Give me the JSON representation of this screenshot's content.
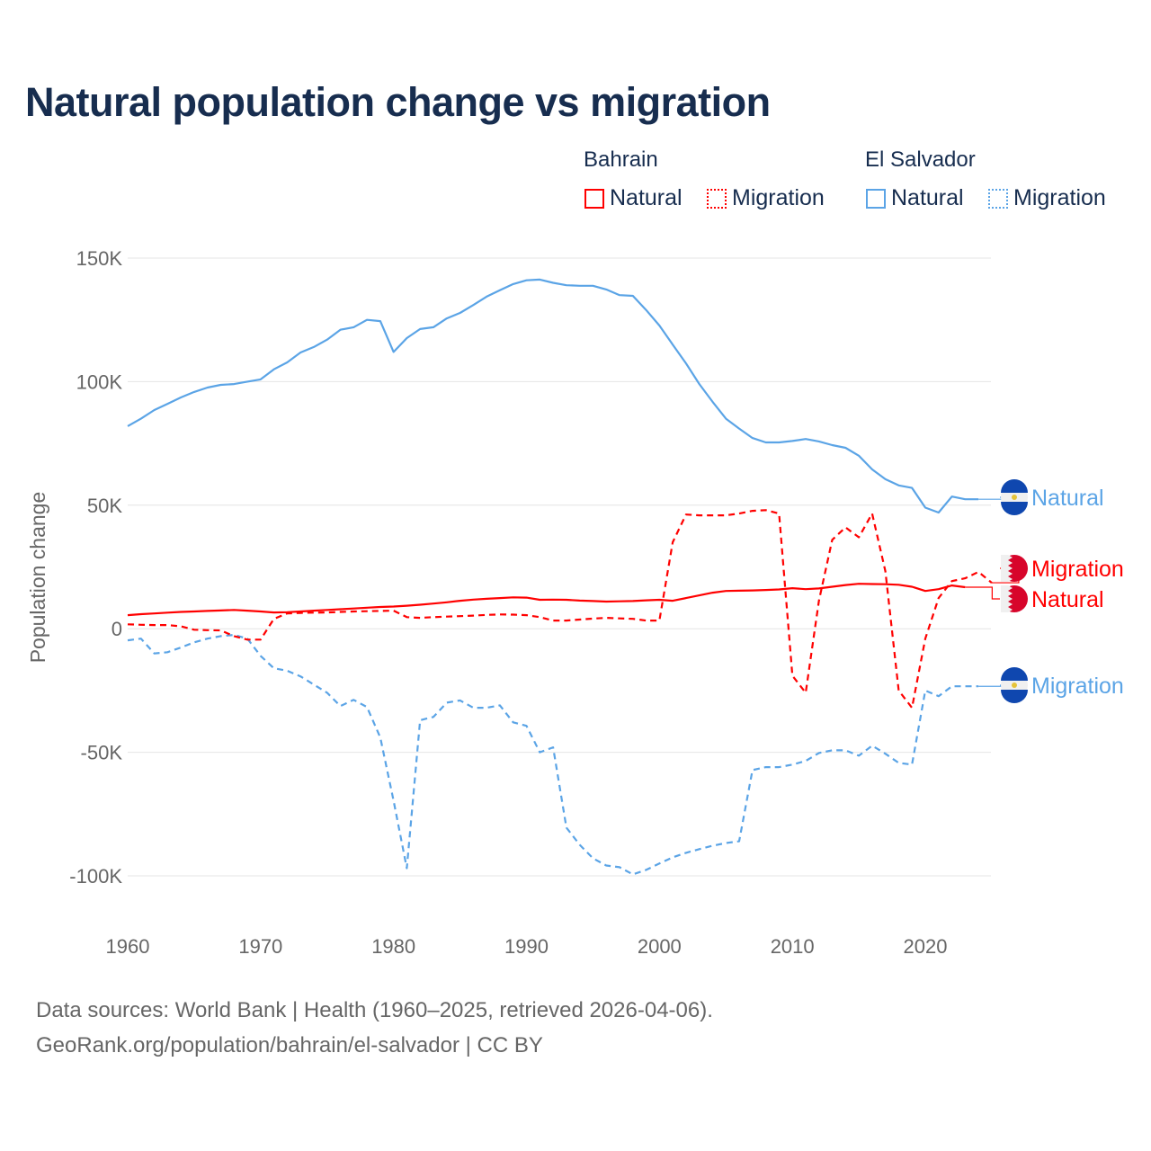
{
  "title": "Natural population change vs migration",
  "legend": {
    "groups": [
      {
        "name": "Bahrain",
        "items": [
          "Natural",
          "Migration"
        ]
      },
      {
        "name": "El Salvador",
        "items": [
          "Natural",
          "Migration"
        ]
      }
    ]
  },
  "footer": {
    "line1": "Data sources: World Bank | Health (1960–2025, retrieved 2026-04-06).",
    "line2": "GeoRank.org/population/bahrain/el-salvador | CC BY"
  },
  "chart_data": {
    "type": "line",
    "title": "Natural population change vs migration",
    "xlabel": "",
    "ylabel": "Population change",
    "xlim": [
      1960,
      2025
    ],
    "ylim": [
      -100000,
      150000
    ],
    "x_ticks": [
      1960,
      1970,
      1980,
      1990,
      2000,
      2010,
      2020
    ],
    "x_tick_labels": [
      "1960",
      "1970",
      "1980",
      "1990",
      "2000",
      "2010",
      "2020"
    ],
    "y_ticks": [
      150000,
      100000,
      50000,
      0,
      -50000,
      -100000
    ],
    "y_tick_labels": [
      "150K",
      "100K",
      "50K",
      "0",
      "-50K",
      "-100K"
    ],
    "grid": true,
    "legend_position": "top-right",
    "colors": {
      "bahrain": "#ff0000",
      "el_salvador": "#5ba4e6"
    },
    "series": [
      {
        "name": "El Salvador Natural",
        "country": "El Salvador",
        "kind": "Natural",
        "end_label": "Natural",
        "color": "#5ba4e6",
        "dash": "solid",
        "start_year": 1960,
        "values": [
          82000,
          85000,
          88500,
          91000,
          93600,
          95800,
          97600,
          98700,
          99000,
          100000,
          100900,
          105000,
          107800,
          111800,
          114000,
          117000,
          121000,
          122000,
          125000,
          124500,
          112000,
          117600,
          121300,
          122000,
          125600,
          127800,
          131000,
          134400,
          137000,
          139500,
          141000,
          141300,
          140000,
          139000,
          138800,
          138800,
          137300,
          135000,
          134700,
          129000,
          122700,
          115000,
          107400,
          99000,
          91800,
          85000,
          81000,
          77200,
          75400,
          75400,
          76000,
          76800,
          75800,
          74300,
          73200,
          70000,
          64500,
          60500,
          58000,
          57000,
          49000,
          47000,
          53500,
          52400,
          52400
        ]
      },
      {
        "name": "El Salvador Migration",
        "country": "El Salvador",
        "kind": "Migration",
        "end_label": "Migration",
        "color": "#5ba4e6",
        "dash": "dashed",
        "start_year": 1960,
        "values": [
          -4700,
          -4000,
          -10000,
          -9500,
          -7600,
          -5500,
          -4000,
          -3000,
          -2500,
          -4000,
          -11000,
          -16000,
          -17000,
          -19300,
          -22600,
          -25900,
          -31300,
          -28800,
          -31700,
          -44000,
          -69600,
          -96900,
          -37000,
          -35700,
          -29900,
          -29000,
          -32000,
          -32000,
          -31000,
          -37900,
          -39300,
          -50000,
          -48000,
          -80500,
          -87400,
          -92900,
          -95800,
          -96500,
          -99400,
          -97600,
          -95000,
          -92500,
          -90700,
          -89200,
          -87800,
          -86700,
          -86000,
          -57200,
          -56000,
          -56000,
          -55000,
          -53500,
          -50300,
          -49200,
          -49200,
          -51400,
          -47300,
          -50600,
          -54300,
          -55000,
          -25000,
          -27300,
          -23300,
          -23300,
          -23300
        ]
      },
      {
        "name": "Bahrain Natural",
        "country": "Bahrain",
        "kind": "Natural",
        "end_label": "Natural",
        "color": "#ff0000",
        "dash": "solid",
        "start_year": 1960,
        "values": [
          5500,
          5900,
          6200,
          6500,
          6800,
          7000,
          7200,
          7400,
          7600,
          7300,
          7000,
          6600,
          6700,
          7000,
          7300,
          7600,
          7900,
          8200,
          8500,
          8800,
          9000,
          9300,
          9700,
          10200,
          10700,
          11300,
          11800,
          12100,
          12400,
          12700,
          12600,
          11700,
          11800,
          11700,
          11400,
          11200,
          11000,
          11100,
          11200,
          11500,
          11700,
          11300,
          12400,
          13500,
          14600,
          15300,
          15400,
          15500,
          15700,
          15900,
          16400,
          16000,
          16300,
          17000,
          17700,
          18200,
          18100,
          18000,
          17800,
          17000,
          15300,
          16000,
          17500,
          16800
        ]
      },
      {
        "name": "Bahrain Migration",
        "country": "Bahrain",
        "kind": "Migration",
        "end_label": "Migration",
        "color": "#ff0000",
        "dash": "dashed",
        "start_year": 1960,
        "values": [
          1800,
          1600,
          1500,
          1500,
          1000,
          -400,
          -600,
          -700,
          -3000,
          -4400,
          -4400,
          4000,
          6200,
          6400,
          6500,
          6600,
          6800,
          7000,
          7100,
          7200,
          7300,
          4700,
          4400,
          4700,
          4900,
          5100,
          5300,
          5600,
          5800,
          5700,
          5500,
          4700,
          3300,
          3300,
          3700,
          4100,
          4400,
          4200,
          4000,
          3300,
          3300,
          35000,
          46200,
          45900,
          45900,
          45900,
          46600,
          47700,
          48000,
          46600,
          -19000,
          -25900,
          11300,
          36000,
          41000,
          37000,
          46600,
          23300,
          -25000,
          -32000,
          -4000,
          12400,
          19300,
          20400,
          23000,
          18600
        ]
      }
    ]
  }
}
